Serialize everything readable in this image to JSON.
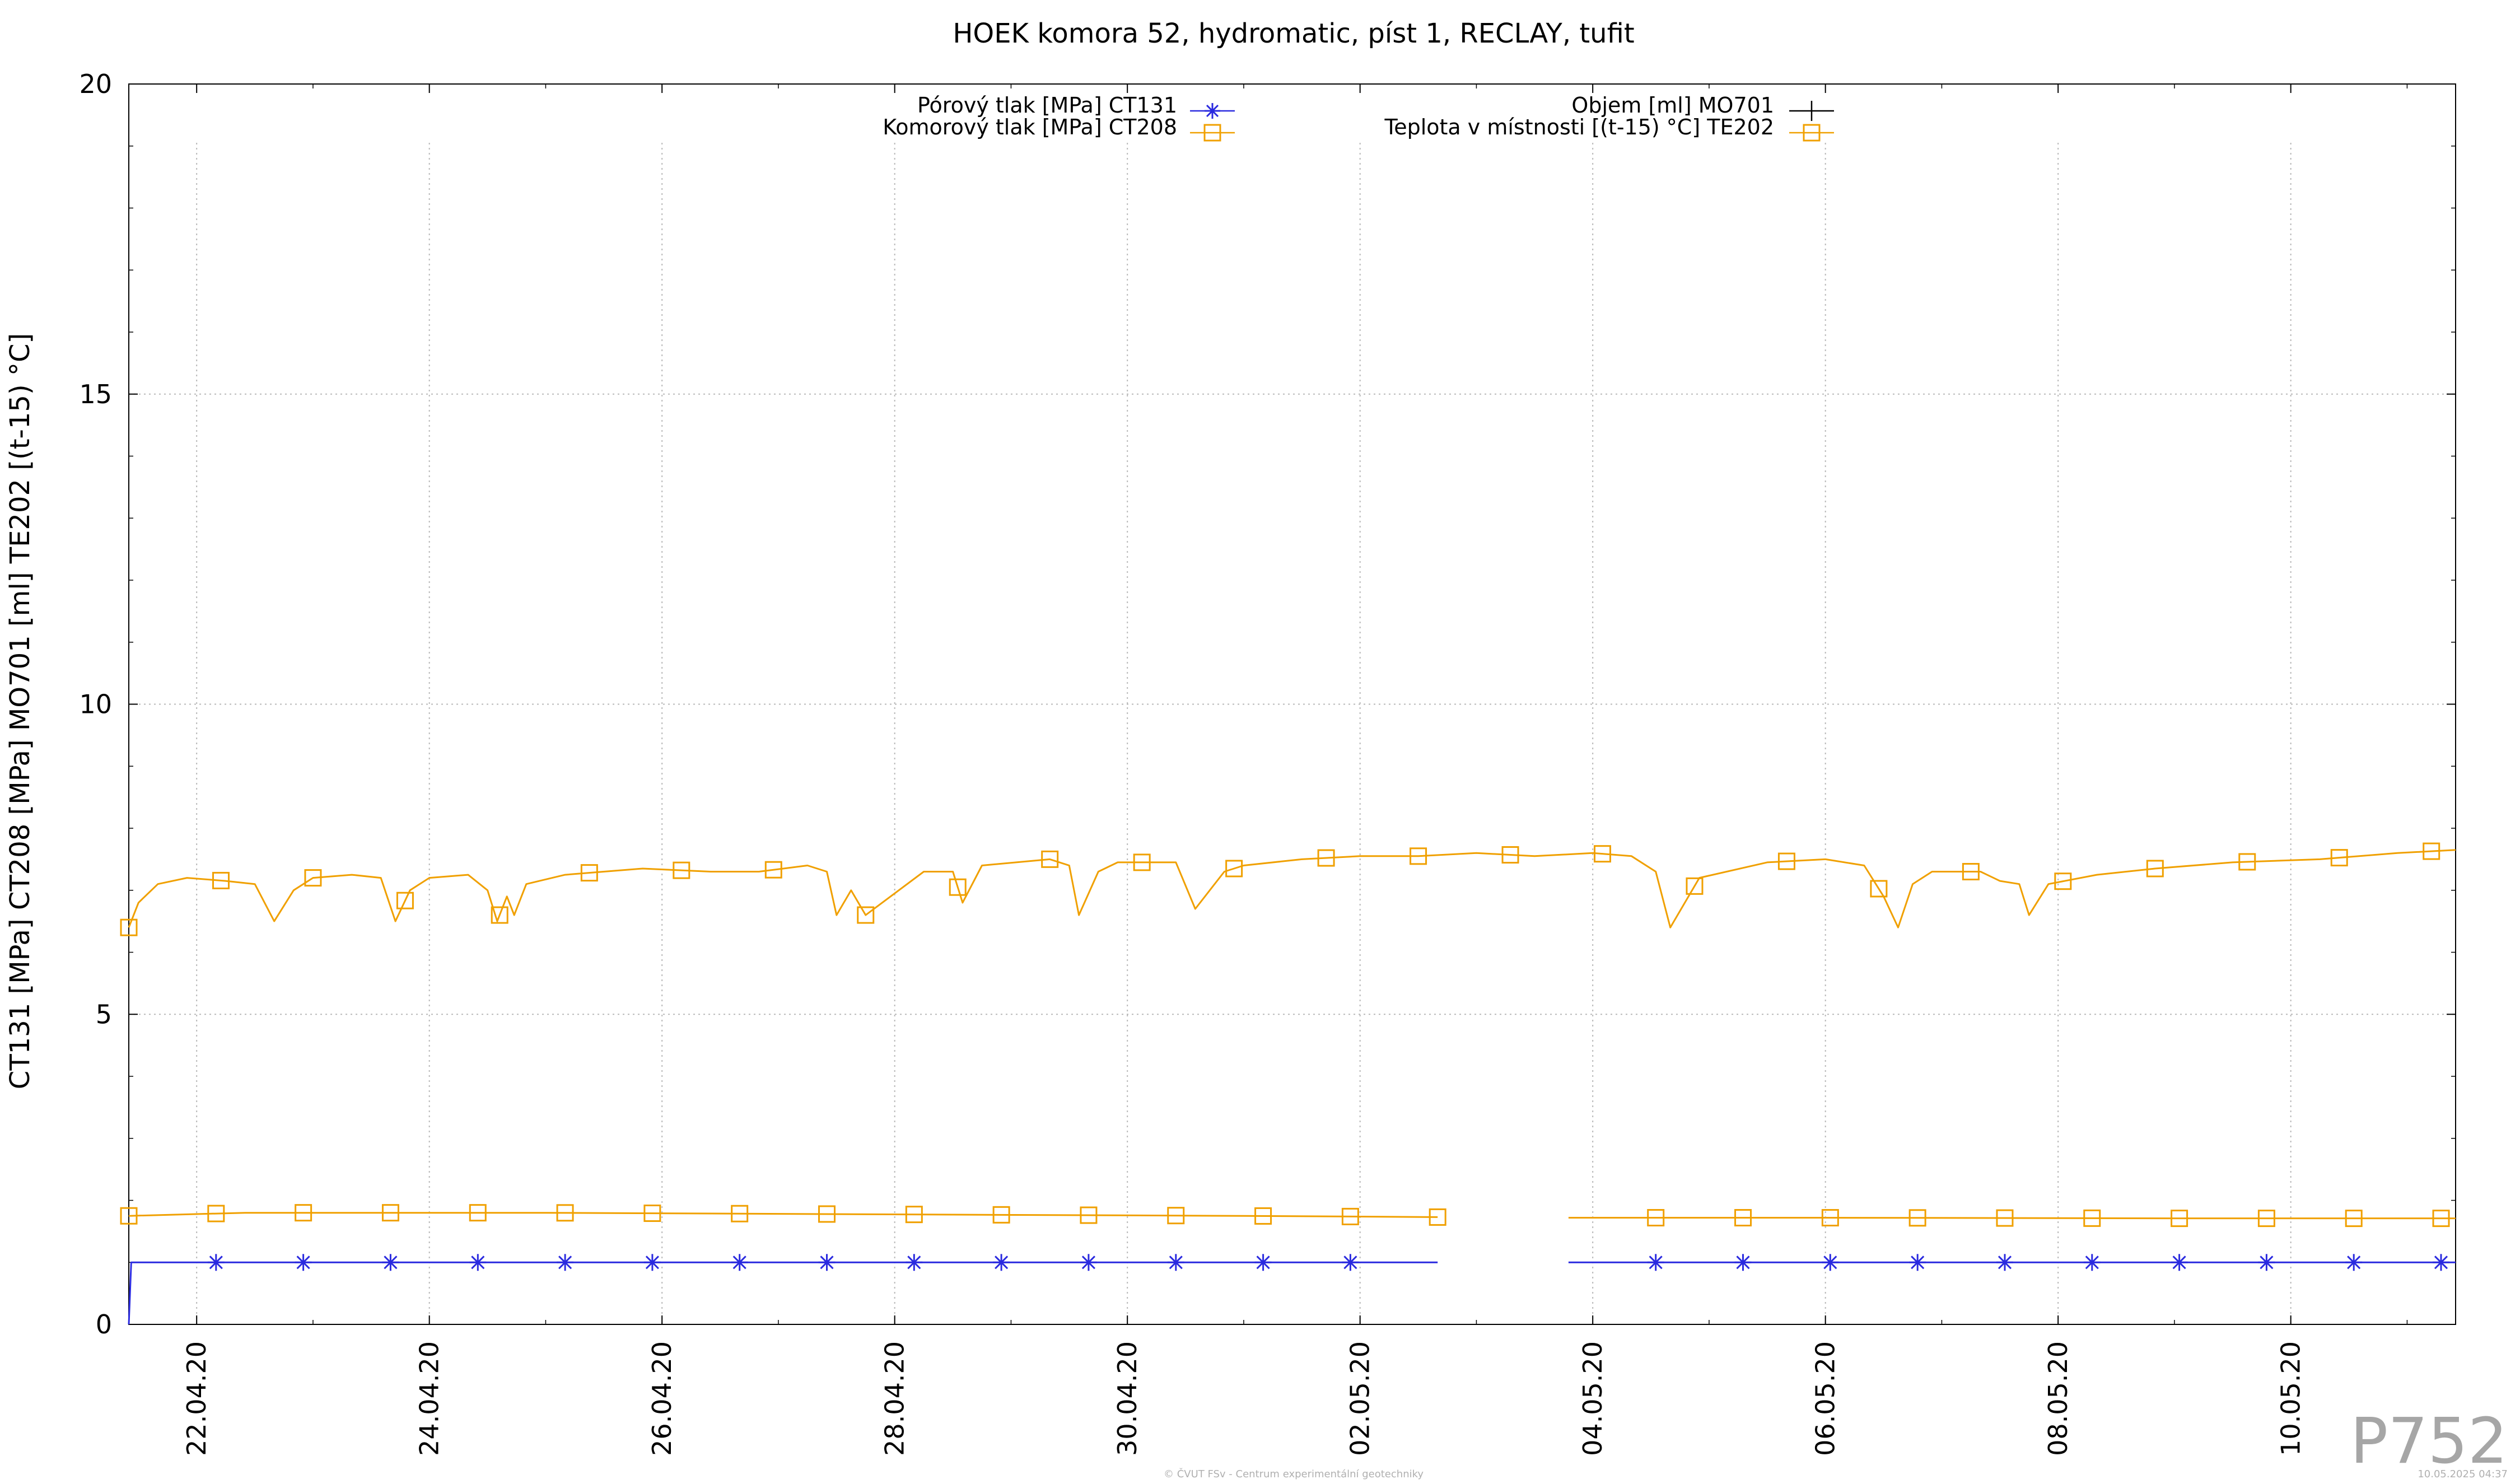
{
  "chart_data": {
    "type": "line",
    "title": "HOEK komora 52, hydromatic, píst 1, RECLAY, tufit",
    "ylabel": "CT131 [MPa] CT208 [MPa] MO701 [ml] TE202 [(t-15) °C]",
    "xlabel": "",
    "ylim": [
      0,
      20
    ],
    "xlim": [
      "2020-04-21 10:00",
      "2020-05-11 10:00"
    ],
    "grid": true,
    "legend_position": "top-center",
    "y_ticks": [
      "0",
      "5",
      "10",
      "15",
      "20"
    ],
    "x_ticks": [
      {
        "label": "22.04.20",
        "date": "2020-04-22"
      },
      {
        "label": "24.04.20",
        "date": "2020-04-24"
      },
      {
        "label": "26.04.20",
        "date": "2020-04-26"
      },
      {
        "label": "28.04.20",
        "date": "2020-04-28"
      },
      {
        "label": "30.04.20",
        "date": "2020-04-30"
      },
      {
        "label": "02.05.20",
        "date": "2020-05-02"
      },
      {
        "label": "04.05.20",
        "date": "2020-05-04"
      },
      {
        "label": "06.05.20",
        "date": "2020-05-06"
      },
      {
        "label": "08.05.20",
        "date": "2020-05-08"
      },
      {
        "label": "10.05.20",
        "date": "2020-05-10"
      }
    ],
    "series": [
      {
        "name": "Pórový tlak [MPa] CT131",
        "color": "#2a2adf",
        "marker": "asterisk",
        "segments": [
          {
            "x": [
              "2020-04-21 10:00",
              "2020-04-21 10:30",
              "2020-05-02 16:00"
            ],
            "y": [
              0.0,
              1.0,
              1.0
            ]
          },
          {
            "x": [
              "2020-05-03 19:00",
              "2020-05-11 10:00"
            ],
            "y": [
              1.0,
              1.0
            ]
          }
        ],
        "marker_x": [
          "2020-04-22 04:00",
          "2020-04-22 22:00",
          "2020-04-23 16:00",
          "2020-04-24 10:00",
          "2020-04-25 04:00",
          "2020-04-25 22:00",
          "2020-04-26 16:00",
          "2020-04-27 10:00",
          "2020-04-28 04:00",
          "2020-04-28 22:00",
          "2020-04-29 16:00",
          "2020-04-30 10:00",
          "2020-05-01 04:00",
          "2020-05-01 22:00",
          "2020-05-04 13:00",
          "2020-05-05 07:00",
          "2020-05-06 01:00",
          "2020-05-06 19:00",
          "2020-05-07 13:00",
          "2020-05-08 07:00",
          "2020-05-09 01:00",
          "2020-05-09 19:00",
          "2020-05-10 13:00",
          "2020-05-11 07:00"
        ]
      },
      {
        "name": "Komorový tlak [MPa] CT208",
        "color": "#f0a000",
        "marker": "square",
        "segments": [
          {
            "x": [
              "2020-04-21 10:00",
              "2020-04-22 10:00",
              "2020-04-25 00:00",
              "2020-04-28 12:00",
              "2020-05-01 00:00",
              "2020-05-02 16:00"
            ],
            "y": [
              1.75,
              1.8,
              1.8,
              1.77,
              1.75,
              1.73
            ]
          },
          {
            "x": [
              "2020-05-03 19:00",
              "2020-05-06 00:00",
              "2020-05-09 00:00",
              "2020-05-11 10:00"
            ],
            "y": [
              1.72,
              1.72,
              1.71,
              1.71
            ]
          }
        ],
        "marker_x": [
          "2020-04-21 10:00",
          "2020-04-22 04:00",
          "2020-04-22 22:00",
          "2020-04-23 16:00",
          "2020-04-24 10:00",
          "2020-04-25 04:00",
          "2020-04-25 22:00",
          "2020-04-26 16:00",
          "2020-04-27 10:00",
          "2020-04-28 04:00",
          "2020-04-28 22:00",
          "2020-04-29 16:00",
          "2020-04-30 10:00",
          "2020-05-01 04:00",
          "2020-05-01 22:00",
          "2020-05-02 16:00",
          "2020-05-04 13:00",
          "2020-05-05 07:00",
          "2020-05-06 01:00",
          "2020-05-06 19:00",
          "2020-05-07 13:00",
          "2020-05-08 07:00",
          "2020-05-09 01:00",
          "2020-05-09 19:00",
          "2020-05-10 13:00",
          "2020-05-11 07:00"
        ]
      },
      {
        "name": "Objem [ml] MO701",
        "color": "#000000",
        "marker": "plus",
        "segments": []
      },
      {
        "name": "Teplota v místnosti [(t-15) °C] TE202",
        "color": "#f0a000",
        "marker": "square",
        "segments": [
          {
            "x": [
              "2020-04-21 10:00",
              "2020-04-21 12:00",
              "2020-04-21 16:00",
              "2020-04-21 22:00",
              "2020-04-22 06:00",
              "2020-04-22 12:00",
              "2020-04-22 16:00",
              "2020-04-22 20:00",
              "2020-04-23 00:00",
              "2020-04-23 08:00",
              "2020-04-23 14:00",
              "2020-04-23 17:00",
              "2020-04-23 20:00",
              "2020-04-24 00:00",
              "2020-04-24 08:00",
              "2020-04-24 12:00",
              "2020-04-24 14:00",
              "2020-04-24 16:00",
              "2020-04-24 17:30",
              "2020-04-24 20:00",
              "2020-04-25 04:00",
              "2020-04-25 12:00",
              "2020-04-25 20:00",
              "2020-04-26 10:00",
              "2020-04-26 20:00",
              "2020-04-27 06:00",
              "2020-04-27 10:00",
              "2020-04-27 12:00",
              "2020-04-27 15:00",
              "2020-04-27 18:00",
              "2020-04-28 06:00",
              "2020-04-28 12:00",
              "2020-04-28 14:00",
              "2020-04-28 18:00",
              "2020-04-29 08:00",
              "2020-04-29 12:00",
              "2020-04-29 14:00",
              "2020-04-29 18:00",
              "2020-04-29 22:00",
              "2020-04-30 10:00",
              "2020-04-30 14:00",
              "2020-04-30 20:00",
              "2020-05-01 00:00",
              "2020-05-01 12:00",
              "2020-05-02 00:00",
              "2020-05-02 12:00",
              "2020-05-03 00:00",
              "2020-05-03 12:00",
              "2020-05-04 00:00",
              "2020-05-04 08:00",
              "2020-05-04 13:00",
              "2020-05-04 16:00",
              "2020-05-04 22:00",
              "2020-05-05 12:00",
              "2020-05-06 00:00",
              "2020-05-06 08:00",
              "2020-05-06 12:00",
              "2020-05-06 15:00",
              "2020-05-06 18:00",
              "2020-05-06 22:00",
              "2020-05-07 08:00",
              "2020-05-07 12:00",
              "2020-05-07 16:00",
              "2020-05-07 18:00",
              "2020-05-07 22:00",
              "2020-05-08 08:00",
              "2020-05-08 20:00",
              "2020-05-09 12:00",
              "2020-05-10 06:00",
              "2020-05-10 22:00",
              "2020-05-11 10:00"
            ],
            "y": [
              6.4,
              6.8,
              7.1,
              7.2,
              7.15,
              7.1,
              6.5,
              7.0,
              7.2,
              7.25,
              7.2,
              6.5,
              7.0,
              7.2,
              7.25,
              7.0,
              6.5,
              6.9,
              6.6,
              7.1,
              7.25,
              7.3,
              7.35,
              7.3,
              7.3,
              7.4,
              7.3,
              6.6,
              7.0,
              6.6,
              7.3,
              7.3,
              6.8,
              7.4,
              7.5,
              7.4,
              6.6,
              7.3,
              7.45,
              7.45,
              6.7,
              7.3,
              7.4,
              7.5,
              7.55,
              7.55,
              7.6,
              7.55,
              7.6,
              7.55,
              7.3,
              6.4,
              7.2,
              7.45,
              7.5,
              7.4,
              6.9,
              6.4,
              7.1,
              7.3,
              7.3,
              7.15,
              7.1,
              6.6,
              7.1,
              7.25,
              7.35,
              7.45,
              7.5,
              7.6,
              7.65
            ]
          }
        ],
        "marker_x": [
          "2020-04-21 10:00",
          "2020-04-22 05:00",
          "2020-04-23 00:00",
          "2020-04-23 19:00",
          "2020-04-24 14:30",
          "2020-04-25 09:00",
          "2020-04-26 04:00",
          "2020-04-26 23:00",
          "2020-04-27 18:00",
          "2020-04-28 13:00",
          "2020-04-29 08:00",
          "2020-04-30 03:00",
          "2020-04-30 22:00",
          "2020-05-01 17:00",
          "2020-05-02 12:00",
          "2020-05-03 07:00",
          "2020-05-04 02:00",
          "2020-05-04 21:00",
          "2020-05-05 16:00",
          "2020-05-06 11:00",
          "2020-05-07 06:00",
          "2020-05-08 01:00",
          "2020-05-08 20:00",
          "2020-05-09 15:00",
          "2020-05-10 10:00",
          "2020-05-11 05:00"
        ]
      }
    ]
  },
  "watermark": "P752",
  "footer": {
    "credit": "© ČVUT FSv - Centrum experimentální geotechniky",
    "timestamp": "10.05.2025 04:37"
  }
}
